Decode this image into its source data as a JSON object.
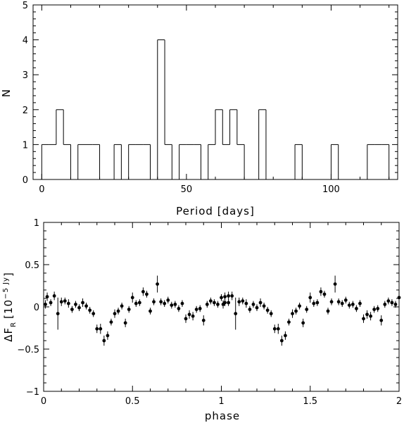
{
  "chart_data": [
    {
      "type": "histogram",
      "xlabel": "Period [days]",
      "ylabel": "N",
      "xlim": [
        -3,
        123
      ],
      "ylim": [
        0,
        5
      ],
      "x_ticks": [
        0,
        50,
        100
      ],
      "y_ticks": [
        0,
        1,
        2,
        3,
        4,
        5
      ],
      "bin_width": 2.5,
      "bins": [
        {
          "start": 0,
          "count": 1
        },
        {
          "start": 2.5,
          "count": 1
        },
        {
          "start": 5,
          "count": 2
        },
        {
          "start": 7.5,
          "count": 1
        },
        {
          "start": 12.5,
          "count": 1
        },
        {
          "start": 15,
          "count": 1
        },
        {
          "start": 17.5,
          "count": 1
        },
        {
          "start": 25,
          "count": 1
        },
        {
          "start": 30,
          "count": 1
        },
        {
          "start": 32.5,
          "count": 1
        },
        {
          "start": 35,
          "count": 1
        },
        {
          "start": 40,
          "count": 4
        },
        {
          "start": 42.5,
          "count": 1
        },
        {
          "start": 47.5,
          "count": 1
        },
        {
          "start": 50,
          "count": 1
        },
        {
          "start": 52.5,
          "count": 1
        },
        {
          "start": 57.5,
          "count": 1
        },
        {
          "start": 60,
          "count": 2
        },
        {
          "start": 62.5,
          "count": 1
        },
        {
          "start": 65,
          "count": 2
        },
        {
          "start": 67.5,
          "count": 1
        },
        {
          "start": 75,
          "count": 2
        },
        {
          "start": 87.5,
          "count": 1
        },
        {
          "start": 100,
          "count": 1
        },
        {
          "start": 112.5,
          "count": 1
        },
        {
          "start": 115,
          "count": 1
        },
        {
          "start": 117.5,
          "count": 1
        }
      ]
    },
    {
      "type": "scatter",
      "xlabel": "phase",
      "ylabel_main": "ΔF",
      "ylabel_sub": "R",
      "ylabel_unit_base": "10",
      "ylabel_unit_exp": "−5 Jy",
      "xlim": [
        0,
        2
      ],
      "ylim": [
        -1,
        1
      ],
      "x_ticks": [
        0,
        0.5,
        1,
        1.5,
        2
      ],
      "x_tick_labels": [
        "0",
        "0.5",
        "1",
        "1.5",
        "2"
      ],
      "y_ticks": [
        -1,
        -0.5,
        0,
        0.5,
        1
      ],
      "y_tick_labels": [
        "−1",
        "−0.5",
        "0",
        "0.5",
        "1"
      ],
      "points": [
        {
          "x": 0.01,
          "y": 0.03,
          "err": 0.05
        },
        {
          "x": 0.02,
          "y": 0.12,
          "err": 0.05
        },
        {
          "x": 0.04,
          "y": 0.05,
          "err": 0.04
        },
        {
          "x": 0.06,
          "y": 0.13,
          "err": 0.05
        },
        {
          "x": 0.08,
          "y": -0.08,
          "err": 0.19
        },
        {
          "x": 0.1,
          "y": 0.06,
          "err": 0.05
        },
        {
          "x": 0.12,
          "y": 0.07,
          "err": 0.04
        },
        {
          "x": 0.14,
          "y": 0.04,
          "err": 0.05
        },
        {
          "x": 0.16,
          "y": -0.03,
          "err": 0.04
        },
        {
          "x": 0.18,
          "y": 0.03,
          "err": 0.04
        },
        {
          "x": 0.2,
          "y": -0.01,
          "err": 0.04
        },
        {
          "x": 0.22,
          "y": 0.05,
          "err": 0.05
        },
        {
          "x": 0.24,
          "y": 0.01,
          "err": 0.04
        },
        {
          "x": 0.26,
          "y": -0.04,
          "err": 0.04
        },
        {
          "x": 0.28,
          "y": -0.08,
          "err": 0.04
        },
        {
          "x": 0.3,
          "y": -0.26,
          "err": 0.05
        },
        {
          "x": 0.32,
          "y": -0.26,
          "err": 0.06
        },
        {
          "x": 0.34,
          "y": -0.4,
          "err": 0.06
        },
        {
          "x": 0.36,
          "y": -0.34,
          "err": 0.05
        },
        {
          "x": 0.38,
          "y": -0.18,
          "err": 0.04
        },
        {
          "x": 0.4,
          "y": -0.08,
          "err": 0.05
        },
        {
          "x": 0.42,
          "y": -0.05,
          "err": 0.04
        },
        {
          "x": 0.44,
          "y": 0.01,
          "err": 0.04
        },
        {
          "x": 0.46,
          "y": -0.19,
          "err": 0.05
        },
        {
          "x": 0.48,
          "y": -0.03,
          "err": 0.04
        },
        {
          "x": 0.5,
          "y": 0.11,
          "err": 0.06
        },
        {
          "x": 0.52,
          "y": 0.04,
          "err": 0.04
        },
        {
          "x": 0.54,
          "y": 0.05,
          "err": 0.04
        },
        {
          "x": 0.56,
          "y": 0.18,
          "err": 0.05
        },
        {
          "x": 0.58,
          "y": 0.15,
          "err": 0.04
        },
        {
          "x": 0.6,
          "y": -0.05,
          "err": 0.04
        },
        {
          "x": 0.62,
          "y": 0.06,
          "err": 0.04
        },
        {
          "x": 0.64,
          "y": 0.27,
          "err": 0.1
        },
        {
          "x": 0.66,
          "y": 0.06,
          "err": 0.04
        },
        {
          "x": 0.68,
          "y": 0.04,
          "err": 0.04
        },
        {
          "x": 0.7,
          "y": 0.08,
          "err": 0.04
        },
        {
          "x": 0.72,
          "y": 0.02,
          "err": 0.04
        },
        {
          "x": 0.74,
          "y": 0.03,
          "err": 0.04
        },
        {
          "x": 0.76,
          "y": -0.02,
          "err": 0.04
        },
        {
          "x": 0.78,
          "y": 0.04,
          "err": 0.04
        },
        {
          "x": 0.8,
          "y": -0.14,
          "err": 0.05
        },
        {
          "x": 0.82,
          "y": -0.09,
          "err": 0.05
        },
        {
          "x": 0.84,
          "y": -0.11,
          "err": 0.05
        },
        {
          "x": 0.86,
          "y": -0.03,
          "err": 0.04
        },
        {
          "x": 0.88,
          "y": -0.02,
          "err": 0.04
        },
        {
          "x": 0.9,
          "y": -0.16,
          "err": 0.06
        },
        {
          "x": 0.92,
          "y": 0.03,
          "err": 0.04
        },
        {
          "x": 0.94,
          "y": 0.07,
          "err": 0.04
        },
        {
          "x": 0.96,
          "y": 0.05,
          "err": 0.04
        },
        {
          "x": 0.98,
          "y": 0.03,
          "err": 0.04
        },
        {
          "x": 1.0,
          "y": 0.11,
          "err": 0.04
        },
        {
          "x": 1.02,
          "y": 0.05,
          "err": 0.04
        },
        {
          "x": 1.04,
          "y": 0.13,
          "err": 0.05
        }
      ],
      "repeat_period": 1
    }
  ]
}
